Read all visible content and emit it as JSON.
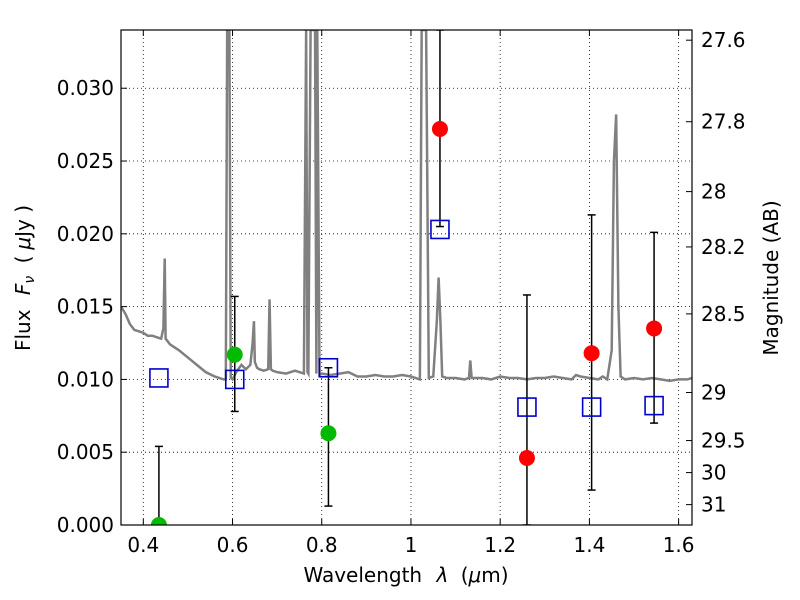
{
  "chart_data": {
    "type": "scatter",
    "xlabel_prefix": "Wavelength",
    "xlabel_symbol": "λ",
    "xlabel_unit_open": "(",
    "xlabel_mu": "μ",
    "xlabel_unit_rest": "m)",
    "ylabel_prefix": "Flux",
    "ylabel_symbol_main": "F",
    "ylabel_symbol_sub": "ν",
    "ylabel_unit_open": "(",
    "ylabel_mu": "μ",
    "ylabel_unit_rest": "Jy )",
    "y2label": "Magnitude (AB)",
    "xlim": [
      0.35,
      1.63
    ],
    "ylim": [
      0.0,
      0.034
    ],
    "grid": true,
    "x_ticks": [
      0.4,
      0.6,
      0.8,
      1.0,
      1.2,
      1.4,
      1.6
    ],
    "x_tick_labels": [
      "0.4",
      "0.6",
      "0.8",
      "1",
      "1.2",
      "1.4",
      "1.6"
    ],
    "y_ticks": [
      0.0,
      0.005,
      0.01,
      0.015,
      0.02,
      0.025,
      0.03
    ],
    "y_tick_labels": [
      "0.000",
      "0.005",
      "0.010",
      "0.015",
      "0.020",
      "0.025",
      "0.030"
    ],
    "mag_ticks": [
      {
        "label": "27.6",
        "flux": 0.0333
      },
      {
        "label": "27.8",
        "flux": 0.0277
      },
      {
        "label": "28",
        "flux": 0.0229
      },
      {
        "label": "28.2",
        "flux": 0.0191
      },
      {
        "label": "28.5",
        "flux": 0.0145
      },
      {
        "label": "29",
        "flux": 0.0091
      },
      {
        "label": "29.5",
        "flux": 0.0058
      },
      {
        "label": "30",
        "flux": 0.0036
      },
      {
        "label": "31",
        "flux": 0.0014
      }
    ],
    "spectrum": {
      "color": "#808080",
      "x": [
        0.35,
        0.36,
        0.37,
        0.38,
        0.39,
        0.4,
        0.41,
        0.42,
        0.43,
        0.44,
        0.445,
        0.448,
        0.45,
        0.455,
        0.46,
        0.48,
        0.5,
        0.52,
        0.54,
        0.56,
        0.58,
        0.585,
        0.588,
        0.59,
        0.593,
        0.596,
        0.6,
        0.61,
        0.62,
        0.63,
        0.64,
        0.645,
        0.648,
        0.65,
        0.655,
        0.66,
        0.67,
        0.68,
        0.683,
        0.686,
        0.69,
        0.7,
        0.72,
        0.74,
        0.76,
        0.765,
        0.768,
        0.77,
        0.775,
        0.78,
        0.785,
        0.788,
        0.79,
        0.795,
        0.8,
        0.82,
        0.84,
        0.86,
        0.88,
        0.9,
        0.92,
        0.94,
        0.96,
        0.98,
        1.0,
        1.01,
        1.02,
        1.024,
        1.026,
        1.03,
        1.034,
        1.04,
        1.05,
        1.058,
        1.062,
        1.066,
        1.07,
        1.08,
        1.1,
        1.12,
        1.13,
        1.133,
        1.136,
        1.14,
        1.16,
        1.18,
        1.2,
        1.22,
        1.24,
        1.26,
        1.28,
        1.3,
        1.32,
        1.34,
        1.36,
        1.37,
        1.38,
        1.4,
        1.42,
        1.43,
        1.44,
        1.45,
        1.455,
        1.46,
        1.465,
        1.47,
        1.48,
        1.5,
        1.52,
        1.54,
        1.56,
        1.58,
        1.6,
        1.62,
        1.63
      ],
      "y": [
        0.015,
        0.0145,
        0.0138,
        0.0134,
        0.0133,
        0.0132,
        0.013,
        0.013,
        0.0129,
        0.0128,
        0.0135,
        0.0183,
        0.0128,
        0.0126,
        0.0124,
        0.012,
        0.0115,
        0.011,
        0.0105,
        0.0102,
        0.01,
        0.01,
        0.034,
        0.034,
        0.034,
        0.0101,
        0.01,
        0.0106,
        0.011,
        0.0107,
        0.011,
        0.0125,
        0.014,
        0.0112,
        0.0108,
        0.0107,
        0.0106,
        0.0107,
        0.0155,
        0.0107,
        0.0106,
        0.0105,
        0.0104,
        0.0106,
        0.0104,
        0.034,
        0.0105,
        0.0104,
        0.034,
        0.034,
        0.034,
        0.0104,
        0.034,
        0.0103,
        0.0104,
        0.0103,
        0.0104,
        0.0105,
        0.0102,
        0.0102,
        0.0103,
        0.0102,
        0.0102,
        0.0103,
        0.0102,
        0.0101,
        0.01,
        0.034,
        0.034,
        0.034,
        0.034,
        0.0101,
        0.0102,
        0.014,
        0.017,
        0.014,
        0.0102,
        0.0101,
        0.0101,
        0.01,
        0.0101,
        0.0113,
        0.0101,
        0.0101,
        0.0101,
        0.01,
        0.0102,
        0.0101,
        0.0101,
        0.01,
        0.0101,
        0.0101,
        0.0102,
        0.0101,
        0.01,
        0.0103,
        0.0102,
        0.0101,
        0.01,
        0.0102,
        0.01,
        0.012,
        0.025,
        0.0282,
        0.015,
        0.0102,
        0.01,
        0.0101,
        0.01,
        0.0101,
        0.01,
        0.0099,
        0.01,
        0.01,
        0.0101
      ]
    },
    "model_points": {
      "color": "#0000cc",
      "marker": "open-square",
      "x": [
        0.435,
        0.605,
        0.815,
        1.065,
        1.26,
        1.405,
        1.545
      ],
      "y": [
        0.0101,
        0.01,
        0.0108,
        0.0203,
        0.0081,
        0.0081,
        0.0082
      ]
    },
    "detections": {
      "color": "#00bb00",
      "marker": "circle",
      "x": [
        0.435,
        0.605,
        0.815
      ],
      "y": [
        0.0,
        0.0117,
        0.0063
      ],
      "err_low": [
        0.0,
        0.0039,
        0.005
      ],
      "err_high": [
        0.0054,
        0.004,
        0.0045
      ]
    },
    "upper_limits": {
      "color": "#ff0000",
      "marker": "circle",
      "x": [
        1.065,
        1.26,
        1.405,
        1.545
      ],
      "y": [
        0.0272,
        0.0046,
        0.0118,
        0.0135
      ],
      "err_low": [
        0.0067,
        0.0046,
        0.0094,
        0.0065
      ],
      "err_high": [
        0.0068,
        0.0112,
        0.0095,
        0.0066
      ]
    }
  }
}
